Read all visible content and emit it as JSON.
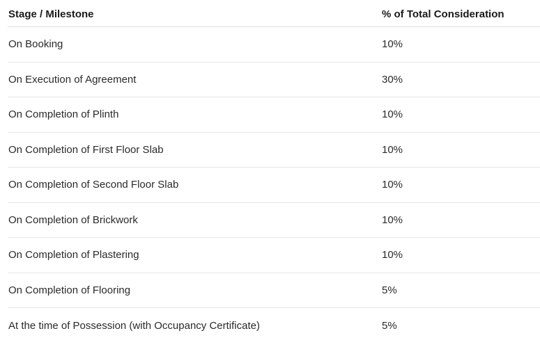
{
  "table": {
    "headers": {
      "stage": "Stage / Milestone",
      "percent": "% of Total Consideration"
    },
    "rows": [
      {
        "stage": "On Booking",
        "percent": "10%"
      },
      {
        "stage": "On Execution of Agreement",
        "percent": "30%"
      },
      {
        "stage": "On Completion of Plinth",
        "percent": "10%"
      },
      {
        "stage": "On Completion of First Floor Slab",
        "percent": "10%"
      },
      {
        "stage": "On Completion of Second Floor Slab",
        "percent": "10%"
      },
      {
        "stage": "On Completion of Brickwork",
        "percent": "10%"
      },
      {
        "stage": "On Completion of Plastering",
        "percent": "10%"
      },
      {
        "stage": "On Completion of Flooring",
        "percent": "5%"
      },
      {
        "stage": "At the time of Possession (with Occupancy Certificate)",
        "percent": "5%"
      }
    ]
  }
}
